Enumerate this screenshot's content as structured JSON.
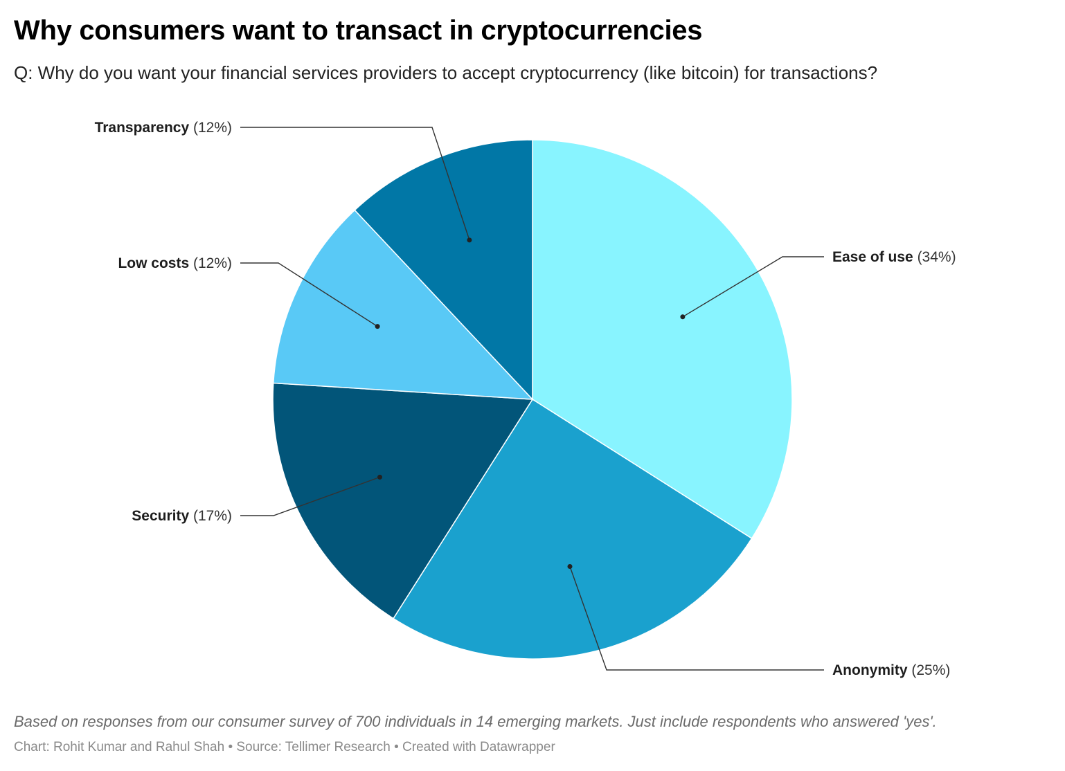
{
  "title": "Why consumers want to transact in cryptocurrencies",
  "subtitle": "Q: Why do you want your financial services providers to accept cryptocurrency (like bitcoin) for transactions?",
  "chart_data": {
    "type": "pie",
    "slices": [
      {
        "label": "Ease of use",
        "value": 34,
        "display": "(34%)",
        "color": "#88f4ff"
      },
      {
        "label": "Anonymity",
        "value": 25,
        "display": "(25%)",
        "color": "#1aa1ce"
      },
      {
        "label": "Security",
        "value": 17,
        "display": "(17%)",
        "color": "#025579"
      },
      {
        "label": "Low costs",
        "value": 12,
        "display": "(12%)",
        "color": "#59c9f6"
      },
      {
        "label": "Transparency",
        "value": 12,
        "display": "(12%)",
        "color": "#0177a6"
      }
    ],
    "start_angle": "top",
    "direction": "clockwise",
    "label_style": "outside with leader lines"
  },
  "notes": "Based on responses from our consumer survey of 700 individuals in 14 emerging markets. Just include respondents who answered 'yes'.",
  "byline": "Chart: Rohit Kumar and Rahul Shah • Source: Tellimer Research • Created with Datawrapper"
}
